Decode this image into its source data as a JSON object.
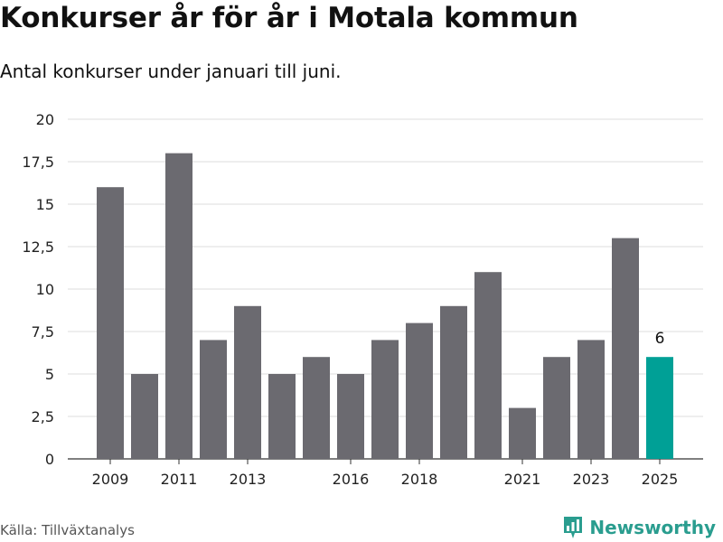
{
  "title": "Konkurser år för år i Motala kommun",
  "subtitle": "Antal konkurser under januari till juni.",
  "source": "Källa: Tillväxtanalys",
  "brand": "Newsworthy",
  "colors": {
    "bar": "#6b6a70",
    "highlight": "#00a096",
    "grid": "#dddddd",
    "brand": "#2a9d8f"
  },
  "chart_data": {
    "type": "bar",
    "x": [
      2009,
      2010,
      2011,
      2012,
      2013,
      2014,
      2015,
      2016,
      2017,
      2018,
      2019,
      2020,
      2021,
      2022,
      2023,
      2024,
      2025
    ],
    "values": [
      16,
      5,
      18,
      7,
      9,
      5,
      6,
      5,
      7,
      8,
      9,
      11,
      3,
      6,
      7,
      13,
      6
    ],
    "x_tick_labels": [
      "2009",
      "2011",
      "2013",
      "2016",
      "2018",
      "2021",
      "2023",
      "2025"
    ],
    "y_ticks": [
      0,
      2.5,
      5,
      7.5,
      10,
      12.5,
      15,
      17.5,
      20
    ],
    "y_tick_labels": [
      "0",
      "2,5",
      "5",
      "7,5",
      "10",
      "12,5",
      "15",
      "17,5",
      "20"
    ],
    "ylim": [
      0,
      20
    ],
    "highlight": {
      "x": 2025,
      "label": "6"
    },
    "grid": true
  }
}
